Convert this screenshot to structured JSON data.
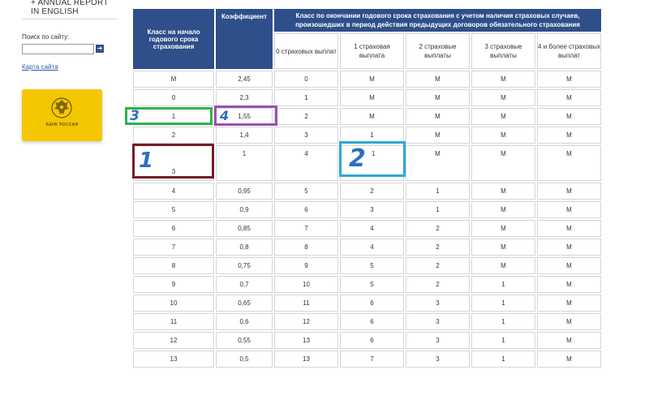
{
  "sidebar": {
    "annual_line1": "+ ANNUAL REPORT",
    "annual_line2": "IN ENGLISH",
    "search_label": "Поиск по сайту:",
    "search_value": "",
    "search_button": "➔",
    "sitemap_link": "Карта сайта",
    "logo_text": "БАНК РОССИИ",
    "logo_color": "#f4c700"
  },
  "table": {
    "header": {
      "class_start": "Класс на начало годового срока страхования",
      "coefficient": "Коэффициент",
      "class_end": "Класс по окончании годового срока страхования с учетом наличия страховых случаев, произошедших в период действия предыдущих договоров обязательного страхования",
      "sub": [
        "0 страховых выплат",
        "1 страховая выплата",
        "2 страховые выплаты",
        "3 страховые выплаты",
        "4 и более страховых выплат"
      ]
    },
    "header_color": "#2e4f8a",
    "rows": [
      [
        "М",
        "2,45",
        "0",
        "М",
        "М",
        "М",
        "М"
      ],
      [
        "0",
        "2,3",
        "1",
        "М",
        "М",
        "М",
        "М"
      ],
      [
        "1",
        "1,55",
        "2",
        "М",
        "М",
        "М",
        "М"
      ],
      [
        "2",
        "1,4",
        "3",
        "1",
        "М",
        "М",
        "М"
      ],
      [
        "3",
        "1",
        "4",
        "1",
        "М",
        "М",
        "М"
      ],
      [
        "4",
        "0,95",
        "5",
        "2",
        "1",
        "М",
        "М"
      ],
      [
        "5",
        "0,9",
        "6",
        "3",
        "1",
        "М",
        "М"
      ],
      [
        "6",
        "0,85",
        "7",
        "4",
        "2",
        "М",
        "М"
      ],
      [
        "7",
        "0,8",
        "8",
        "4",
        "2",
        "М",
        "М"
      ],
      [
        "8",
        "0,75",
        "9",
        "5",
        "2",
        "М",
        "М"
      ],
      [
        "9",
        "0,7",
        "10",
        "5",
        "2",
        "1",
        "М"
      ],
      [
        "10",
        "0,65",
        "11",
        "6",
        "3",
        "1",
        "М"
      ],
      [
        "11",
        "0,6",
        "12",
        "6",
        "3",
        "1",
        "М"
      ],
      [
        "12",
        "0,55",
        "13",
        "6",
        "3",
        "1",
        "М"
      ],
      [
        "13",
        "0,5",
        "13",
        "7",
        "3",
        "1",
        "М"
      ]
    ]
  },
  "annotations": {
    "num1": "1",
    "num2": "2",
    "num3": "3",
    "num4": "4",
    "color1": "#7a1a2a",
    "color2": "#2ea7d6",
    "color3": "#2db34a",
    "color4": "#9b4fb0",
    "digit_color": "#2d6fc0"
  }
}
